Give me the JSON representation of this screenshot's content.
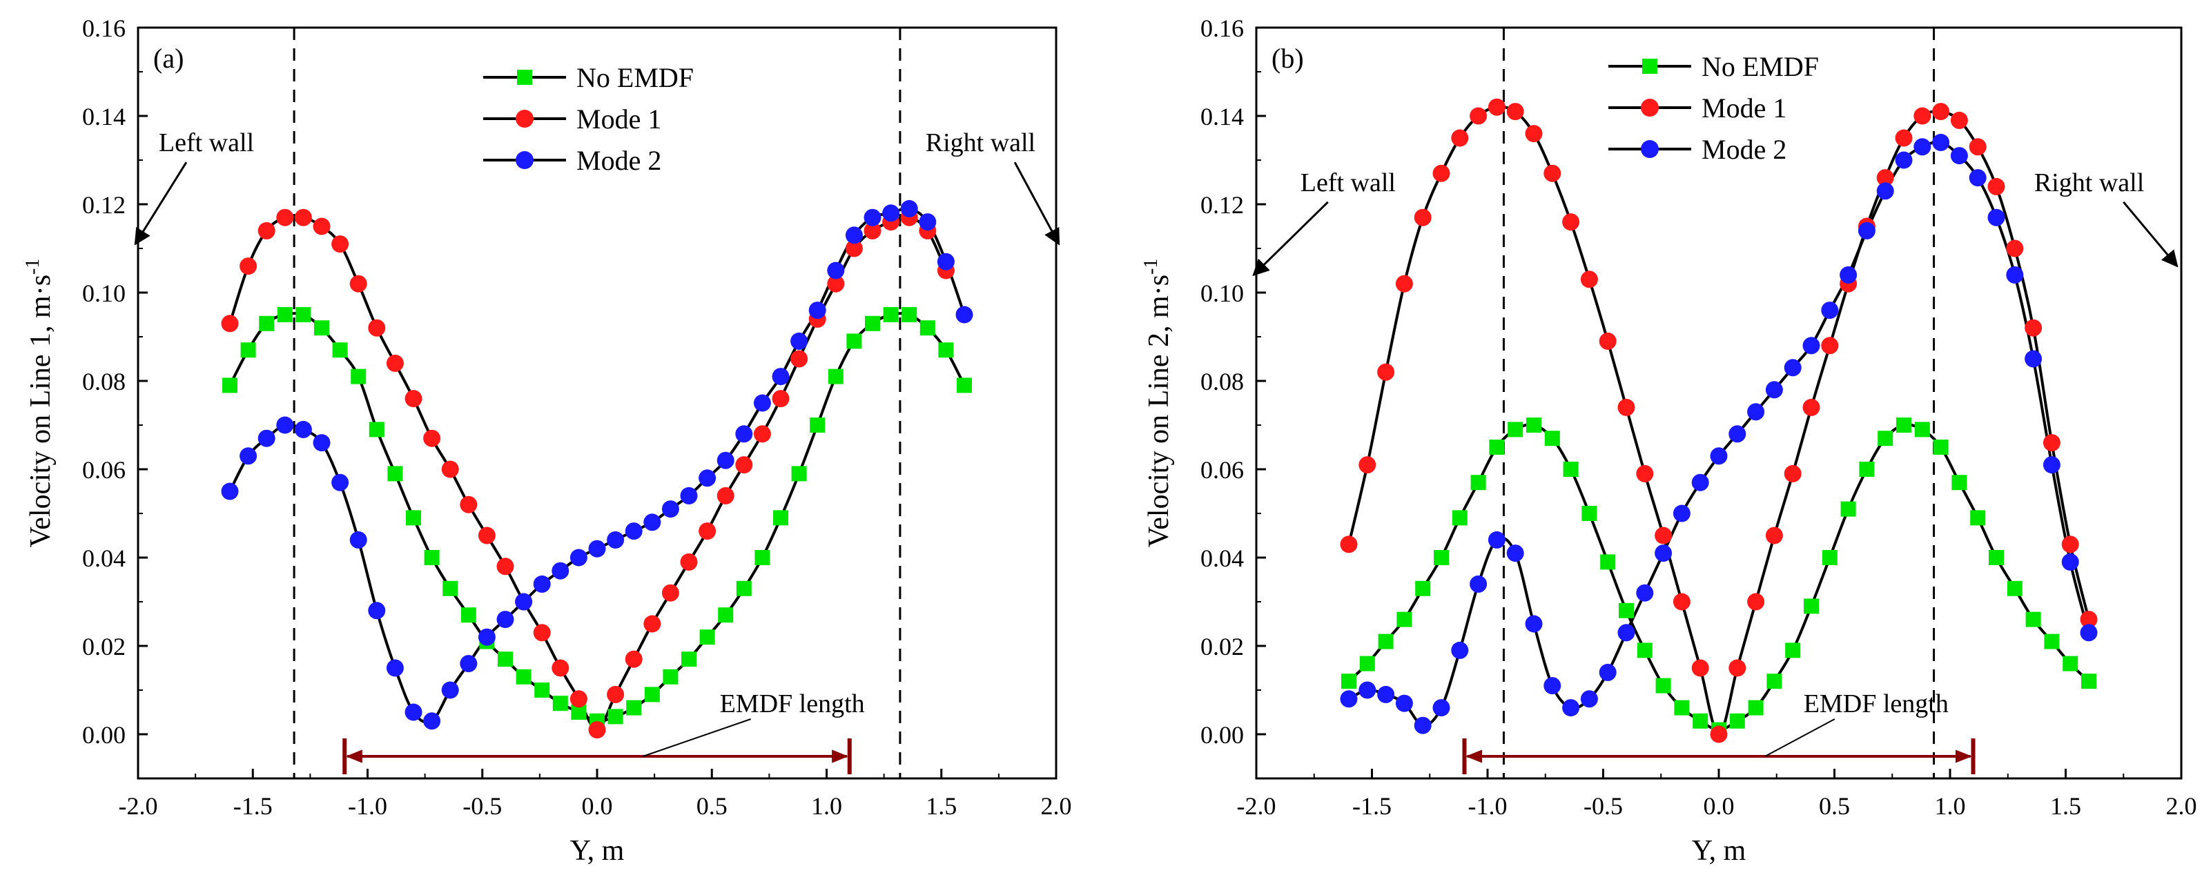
{
  "chart_data": [
    {
      "type": "line",
      "panel_label": "(a)",
      "xlabel": "Y, m",
      "ylabel_main": "Velocity on Line 1, m·s",
      "ylabel_sup": "-1",
      "xlim": [
        -2.0,
        2.0
      ],
      "ylim": [
        -0.01,
        0.16
      ],
      "x_ticks": [
        "-2.0",
        "-1.5",
        "-1.0",
        "-0.5",
        "0.0",
        "0.5",
        "1.0",
        "1.5",
        "2.0"
      ],
      "y_ticks": [
        "0.00",
        "0.02",
        "0.04",
        "0.06",
        "0.08",
        "0.10",
        "0.12",
        "0.14",
        "0.16"
      ],
      "dashed_lines_x": [
        -1.32,
        1.32
      ],
      "annotations": {
        "left_wall": "Left wall",
        "right_wall": "Right wall",
        "emdf_length": "EMDF length",
        "emdf_range": [
          -1.1,
          1.1
        ],
        "emdf_y": -0.005,
        "left_wall_arrow": {
          "label_x": -1.85,
          "label_y": 0.132,
          "tip_x": -2.0,
          "tip_y": 0.111
        },
        "right_wall_arrow": {
          "label_x": 1.85,
          "label_y": 0.132,
          "tip_x": 2.0,
          "tip_y": 0.111
        },
        "emdf_label_pos": {
          "x": 0.85,
          "y": 0.005
        }
      },
      "series": [
        {
          "name": "No EMDF",
          "color": "#00e600",
          "marker": "square",
          "x": [
            -1.6,
            -1.52,
            -1.44,
            -1.36,
            -1.28,
            -1.2,
            -1.12,
            -1.04,
            -0.96,
            -0.88,
            -0.8,
            -0.72,
            -0.64,
            -0.56,
            -0.48,
            -0.4,
            -0.32,
            -0.24,
            -0.16,
            -0.08,
            0.0,
            0.08,
            0.16,
            0.24,
            0.32,
            0.4,
            0.48,
            0.56,
            0.64,
            0.72,
            0.8,
            0.88,
            0.96,
            1.04,
            1.12,
            1.2,
            1.28,
            1.36,
            1.44,
            1.52,
            1.6
          ],
          "y": [
            0.079,
            0.087,
            0.093,
            0.095,
            0.095,
            0.092,
            0.087,
            0.081,
            0.069,
            0.059,
            0.049,
            0.04,
            0.033,
            0.027,
            0.021,
            0.017,
            0.013,
            0.01,
            0.007,
            0.005,
            0.003,
            0.004,
            0.006,
            0.009,
            0.013,
            0.017,
            0.022,
            0.027,
            0.033,
            0.04,
            0.049,
            0.059,
            0.07,
            0.081,
            0.089,
            0.093,
            0.095,
            0.095,
            0.092,
            0.087,
            0.079
          ]
        },
        {
          "name": "Mode 1",
          "color": "#ff1a1a",
          "marker": "circle",
          "x": [
            -1.6,
            -1.52,
            -1.44,
            -1.36,
            -1.28,
            -1.2,
            -1.12,
            -1.04,
            -0.96,
            -0.88,
            -0.8,
            -0.72,
            -0.64,
            -0.56,
            -0.48,
            -0.4,
            -0.32,
            -0.24,
            -0.16,
            -0.08,
            0.0,
            0.08,
            0.16,
            0.24,
            0.32,
            0.4,
            0.48,
            0.56,
            0.64,
            0.72,
            0.8,
            0.88,
            0.96,
            1.04,
            1.12,
            1.2,
            1.28,
            1.36,
            1.44,
            1.52
          ],
          "y": [
            0.093,
            0.106,
            0.114,
            0.117,
            0.117,
            0.115,
            0.111,
            0.102,
            0.092,
            0.084,
            0.076,
            0.067,
            0.06,
            0.052,
            0.045,
            0.038,
            0.03,
            0.023,
            0.015,
            0.008,
            0.001,
            0.009,
            0.017,
            0.025,
            0.032,
            0.039,
            0.046,
            0.054,
            0.061,
            0.068,
            0.076,
            0.085,
            0.094,
            0.102,
            0.11,
            0.114,
            0.116,
            0.117,
            0.114,
            0.105
          ]
        },
        {
          "name": "Mode 2",
          "color": "#1a1aff",
          "marker": "circle",
          "x": [
            -1.6,
            -1.52,
            -1.44,
            -1.36,
            -1.28,
            -1.2,
            -1.12,
            -1.04,
            -0.96,
            -0.88,
            -0.8,
            -0.72,
            -0.64,
            -0.56,
            -0.48,
            -0.4,
            -0.32,
            -0.24,
            -0.16,
            -0.08,
            0.0,
            0.08,
            0.16,
            0.24,
            0.32,
            0.4,
            0.48,
            0.56,
            0.64,
            0.72,
            0.8,
            0.88,
            0.96,
            1.04,
            1.12,
            1.2,
            1.28,
            1.36,
            1.44,
            1.52,
            1.6
          ],
          "y": [
            0.055,
            0.063,
            0.067,
            0.07,
            0.069,
            0.066,
            0.057,
            0.044,
            0.028,
            0.015,
            0.005,
            0.003,
            0.01,
            0.016,
            0.022,
            0.026,
            0.03,
            0.034,
            0.037,
            0.04,
            0.042,
            0.044,
            0.046,
            0.048,
            0.051,
            0.054,
            0.058,
            0.062,
            0.068,
            0.075,
            0.081,
            0.089,
            0.096,
            0.105,
            0.113,
            0.117,
            0.118,
            0.119,
            0.116,
            0.107,
            0.095
          ]
        }
      ]
    },
    {
      "type": "line",
      "panel_label": "(b)",
      "xlabel": "Y, m",
      "ylabel_main": "Velocity on Line 2, m·s",
      "ylabel_sup": "-1",
      "xlim": [
        -2.0,
        2.0
      ],
      "ylim": [
        -0.01,
        0.16
      ],
      "x_ticks": [
        "-2.0",
        "-1.5",
        "-1.0",
        "-0.5",
        "0.0",
        "0.5",
        "1.0",
        "1.5",
        "2.0"
      ],
      "y_ticks": [
        "0.00",
        "0.02",
        "0.04",
        "0.06",
        "0.08",
        "0.10",
        "0.12",
        "0.14",
        "0.16"
      ],
      "dashed_lines_x": [
        -0.93,
        0.93
      ],
      "annotations": {
        "left_wall": "Left wall",
        "right_wall": "Right wall",
        "emdf_length": "EMDF length",
        "emdf_range": [
          -1.1,
          1.1
        ],
        "emdf_y": -0.005,
        "left_wall_arrow": {
          "label_x": -1.75,
          "label_y": 0.123,
          "tip_x": -2.0,
          "tip_y": 0.104
        },
        "right_wall_arrow": {
          "label_x": 1.78,
          "label_y": 0.123,
          "tip_x": 1.97,
          "tip_y": 0.106
        },
        "emdf_label_pos": {
          "x": 0.68,
          "y": 0.005
        }
      },
      "series": [
        {
          "name": "No EMDF",
          "color": "#00e600",
          "marker": "square",
          "x": [
            -1.6,
            -1.52,
            -1.44,
            -1.36,
            -1.28,
            -1.2,
            -1.12,
            -1.04,
            -0.96,
            -0.88,
            -0.8,
            -0.72,
            -0.64,
            -0.56,
            -0.48,
            -0.4,
            -0.32,
            -0.24,
            -0.16,
            -0.08,
            0.0,
            0.08,
            0.16,
            0.24,
            0.32,
            0.4,
            0.48,
            0.56,
            0.64,
            0.72,
            0.8,
            0.88,
            0.96,
            1.04,
            1.12,
            1.2,
            1.28,
            1.36,
            1.44,
            1.52,
            1.6
          ],
          "y": [
            0.012,
            0.016,
            0.021,
            0.026,
            0.033,
            0.04,
            0.049,
            0.057,
            0.065,
            0.069,
            0.07,
            0.067,
            0.06,
            0.05,
            0.039,
            0.028,
            0.019,
            0.011,
            0.006,
            0.003,
            0.001,
            0.003,
            0.006,
            0.012,
            0.019,
            0.029,
            0.04,
            0.051,
            0.06,
            0.067,
            0.07,
            0.069,
            0.065,
            0.057,
            0.049,
            0.04,
            0.033,
            0.026,
            0.021,
            0.016,
            0.012
          ]
        },
        {
          "name": "Mode 1",
          "color": "#ff1a1a",
          "marker": "circle",
          "x": [
            -1.6,
            -1.52,
            -1.44,
            -1.36,
            -1.28,
            -1.2,
            -1.12,
            -1.04,
            -0.96,
            -0.88,
            -0.8,
            -0.72,
            -0.64,
            -0.56,
            -0.48,
            -0.4,
            -0.32,
            -0.24,
            -0.16,
            -0.08,
            0.0,
            0.08,
            0.16,
            0.24,
            0.32,
            0.4,
            0.48,
            0.56,
            0.64,
            0.72,
            0.8,
            0.88,
            0.96,
            1.04,
            1.12,
            1.2,
            1.28,
            1.36,
            1.44,
            1.52,
            1.6
          ],
          "y": [
            0.043,
            0.061,
            0.082,
            0.102,
            0.117,
            0.127,
            0.135,
            0.14,
            0.142,
            0.141,
            0.136,
            0.127,
            0.116,
            0.103,
            0.089,
            0.074,
            0.059,
            0.045,
            0.03,
            0.015,
            0.0,
            0.015,
            0.03,
            0.045,
            0.059,
            0.074,
            0.088,
            0.102,
            0.115,
            0.126,
            0.135,
            0.14,
            0.141,
            0.139,
            0.133,
            0.124,
            0.11,
            0.092,
            0.066,
            0.043,
            0.026
          ]
        },
        {
          "name": "Mode 2",
          "color": "#1a1aff",
          "marker": "circle",
          "x": [
            -1.6,
            -1.52,
            -1.44,
            -1.36,
            -1.28,
            -1.2,
            -1.12,
            -1.04,
            -0.96,
            -0.88,
            -0.8,
            -0.72,
            -0.64,
            -0.56,
            -0.48,
            -0.4,
            -0.32,
            -0.24,
            -0.16,
            -0.08,
            0.0,
            0.08,
            0.16,
            0.24,
            0.32,
            0.4,
            0.48,
            0.56,
            0.64,
            0.72,
            0.8,
            0.88,
            0.96,
            1.04,
            1.12,
            1.2,
            1.28,
            1.36,
            1.44,
            1.52,
            1.6
          ],
          "y": [
            0.008,
            0.01,
            0.009,
            0.007,
            0.002,
            0.006,
            0.019,
            0.034,
            0.044,
            0.041,
            0.025,
            0.011,
            0.006,
            0.008,
            0.014,
            0.023,
            0.032,
            0.041,
            0.05,
            0.057,
            0.063,
            0.068,
            0.073,
            0.078,
            0.083,
            0.088,
            0.096,
            0.104,
            0.114,
            0.123,
            0.13,
            0.133,
            0.134,
            0.131,
            0.126,
            0.117,
            0.104,
            0.085,
            0.061,
            0.039,
            0.023
          ]
        }
      ]
    }
  ]
}
